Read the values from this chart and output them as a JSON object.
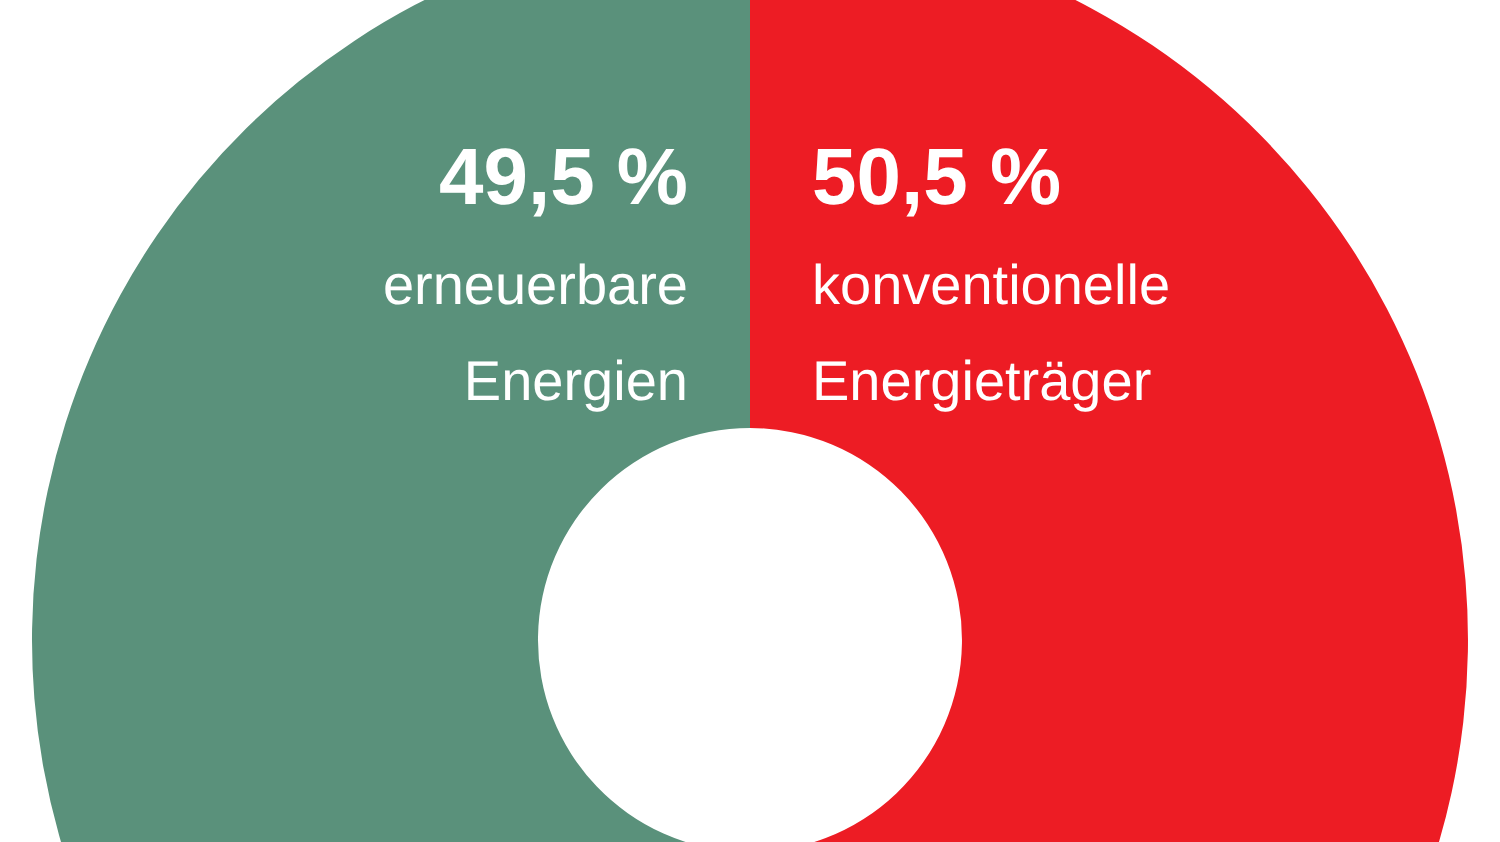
{
  "chart_data": {
    "type": "donut",
    "categories": [
      "erneuerbare Energien",
      "konventionelle Energieträger"
    ],
    "values": [
      49.5,
      50.5
    ],
    "colors": [
      "#5a917b",
      "#ed1c24"
    ],
    "value_labels": [
      "49,5 %",
      "50,5 %"
    ]
  }
}
